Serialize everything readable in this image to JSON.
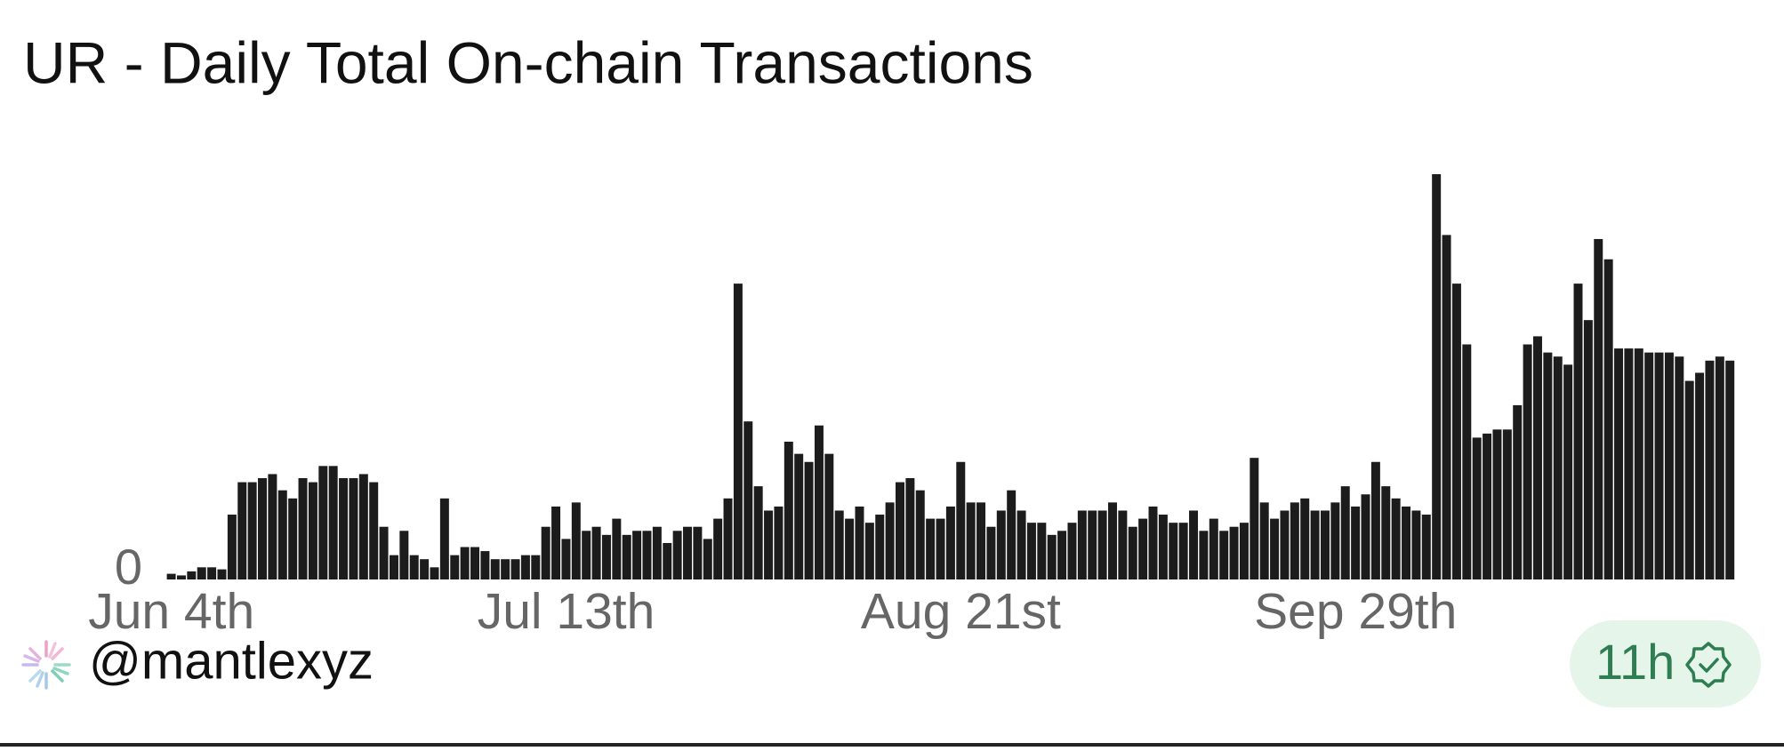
{
  "chart_data": {
    "type": "bar",
    "title": "UR - Daily Total On-chain Transactions",
    "categories": [
      "Jun 4th",
      null,
      null,
      null,
      null,
      null,
      null,
      null,
      null,
      null,
      null,
      null,
      null,
      null,
      null,
      null,
      null,
      null,
      null,
      null,
      null,
      null,
      null,
      null,
      null,
      null,
      null,
      null,
      null,
      null,
      null,
      null,
      null,
      null,
      null,
      null,
      null,
      null,
      null,
      "Jul 13th",
      null,
      null,
      null,
      null,
      null,
      null,
      null,
      null,
      null,
      null,
      null,
      null,
      null,
      null,
      null,
      null,
      null,
      null,
      null,
      null,
      null,
      null,
      null,
      null,
      null,
      null,
      null,
      null,
      null,
      null,
      null,
      null,
      null,
      null,
      null,
      null,
      null,
      null,
      "Aug 21st",
      null,
      null,
      null,
      null,
      null,
      null,
      null,
      null,
      null,
      null,
      null,
      null,
      null,
      null,
      null,
      null,
      null,
      null,
      null,
      null,
      null,
      null,
      null,
      null,
      null,
      null,
      null,
      null,
      null,
      null,
      null,
      null,
      null,
      null,
      null,
      null,
      null,
      null,
      "Sep 29th",
      null,
      null,
      null,
      null,
      null,
      null,
      null,
      null,
      null,
      null,
      null,
      null,
      null,
      null,
      null,
      null,
      null,
      null,
      null,
      null,
      null,
      null,
      null,
      null,
      null,
      null,
      null,
      null,
      null,
      null,
      null,
      null,
      null,
      null,
      null,
      null,
      null
    ],
    "values": [
      1.4,
      1,
      2,
      3,
      3,
      2.5,
      16,
      24,
      24,
      25,
      26,
      22,
      20,
      25,
      24,
      28,
      28,
      25,
      25,
      26,
      24,
      13,
      6,
      12,
      6,
      5,
      3,
      20,
      6,
      8,
      8,
      7,
      5,
      5,
      5,
      6,
      6,
      13,
      18,
      10,
      19,
      12,
      13,
      11,
      15,
      11,
      12,
      12,
      13,
      9,
      12,
      13,
      13,
      10,
      15,
      20,
      73,
      39,
      23,
      17,
      18,
      34,
      31,
      29,
      38,
      31,
      17,
      15,
      18,
      14,
      16,
      19,
      24,
      25,
      22,
      15,
      15,
      18,
      29,
      19,
      19,
      13,
      17,
      22,
      17,
      14,
      14,
      11,
      12,
      14,
      17,
      17,
      17,
      19,
      17,
      13,
      15,
      18,
      16,
      14,
      14,
      17,
      12,
      15,
      12,
      13,
      14,
      30,
      19,
      15,
      17,
      19,
      20,
      17,
      17,
      19,
      23,
      18,
      21,
      29,
      23,
      20,
      18,
      17,
      16,
      100,
      85,
      73,
      58,
      35,
      36,
      37,
      37,
      43,
      58,
      60,
      56,
      55,
      53,
      73,
      64,
      84,
      79,
      57,
      57,
      57,
      56,
      56,
      56,
      55,
      49,
      51,
      54,
      55,
      54
    ],
    "color": "#1c1c1c",
    "ylim": [
      0,
      100
    ],
    "yticks": [
      0
    ],
    "grid": false
  },
  "footer": {
    "handle": "@mantlexyz",
    "badge": "11h"
  }
}
